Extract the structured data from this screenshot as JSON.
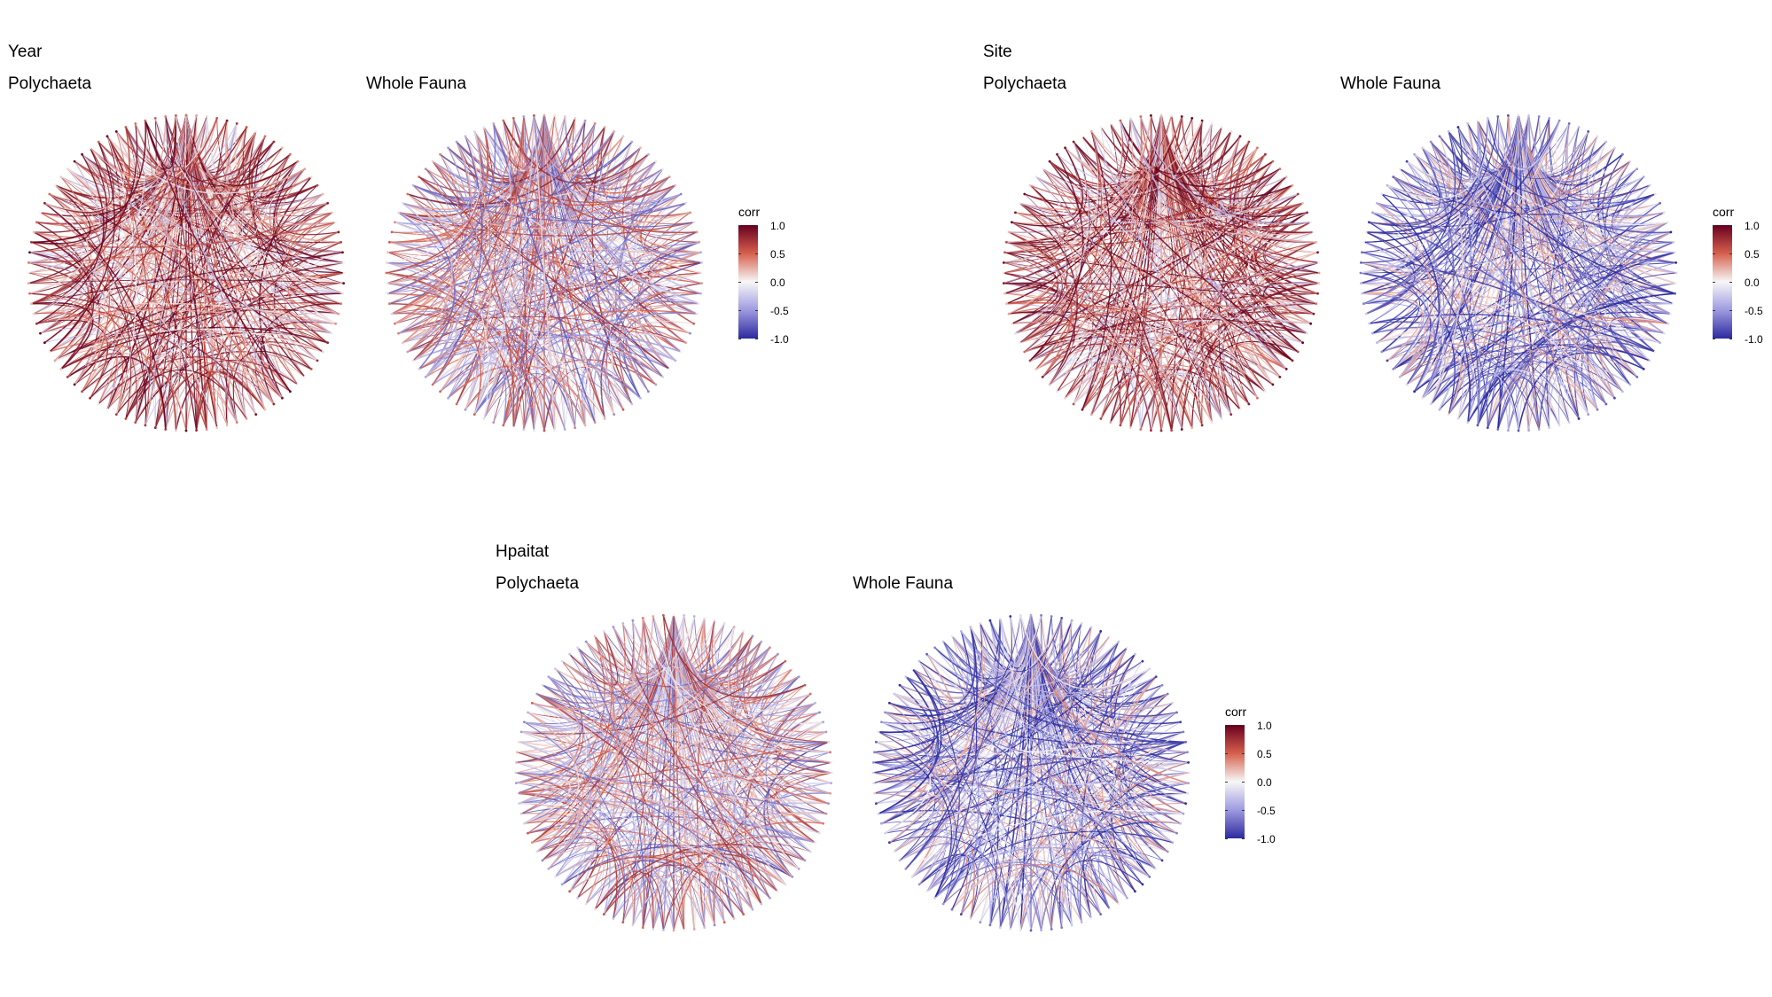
{
  "groups": [
    {
      "title": "Year",
      "panels": [
        {
          "title": "Polychaeta",
          "dominant": "red",
          "seed": 11
        },
        {
          "title": "Whole Fauna",
          "dominant": "mixed",
          "seed": 23
        }
      ]
    },
    {
      "title": "Site",
      "panels": [
        {
          "title": "Polychaeta",
          "dominant": "red",
          "seed": 37
        },
        {
          "title": "Whole Fauna",
          "dominant": "blue",
          "seed": 41
        }
      ]
    },
    {
      "title": "Hpaitat",
      "panels": [
        {
          "title": "Polychaeta",
          "dominant": "mixed",
          "seed": 53
        },
        {
          "title": "Whole Fauna",
          "dominant": "blue",
          "seed": 67
        }
      ]
    }
  ],
  "legend": {
    "title": "corr",
    "ticks": [
      "1.0",
      "0.5",
      "0.0",
      "-0.5",
      "-1.0"
    ],
    "range": [
      -1.0,
      1.0
    ],
    "colors": {
      "high": "#67001f",
      "mid_high": "#d6604d",
      "mid": "#f7f7f7",
      "mid_low": "#9e9ae0",
      "low": "#2c2a9e"
    }
  }
}
